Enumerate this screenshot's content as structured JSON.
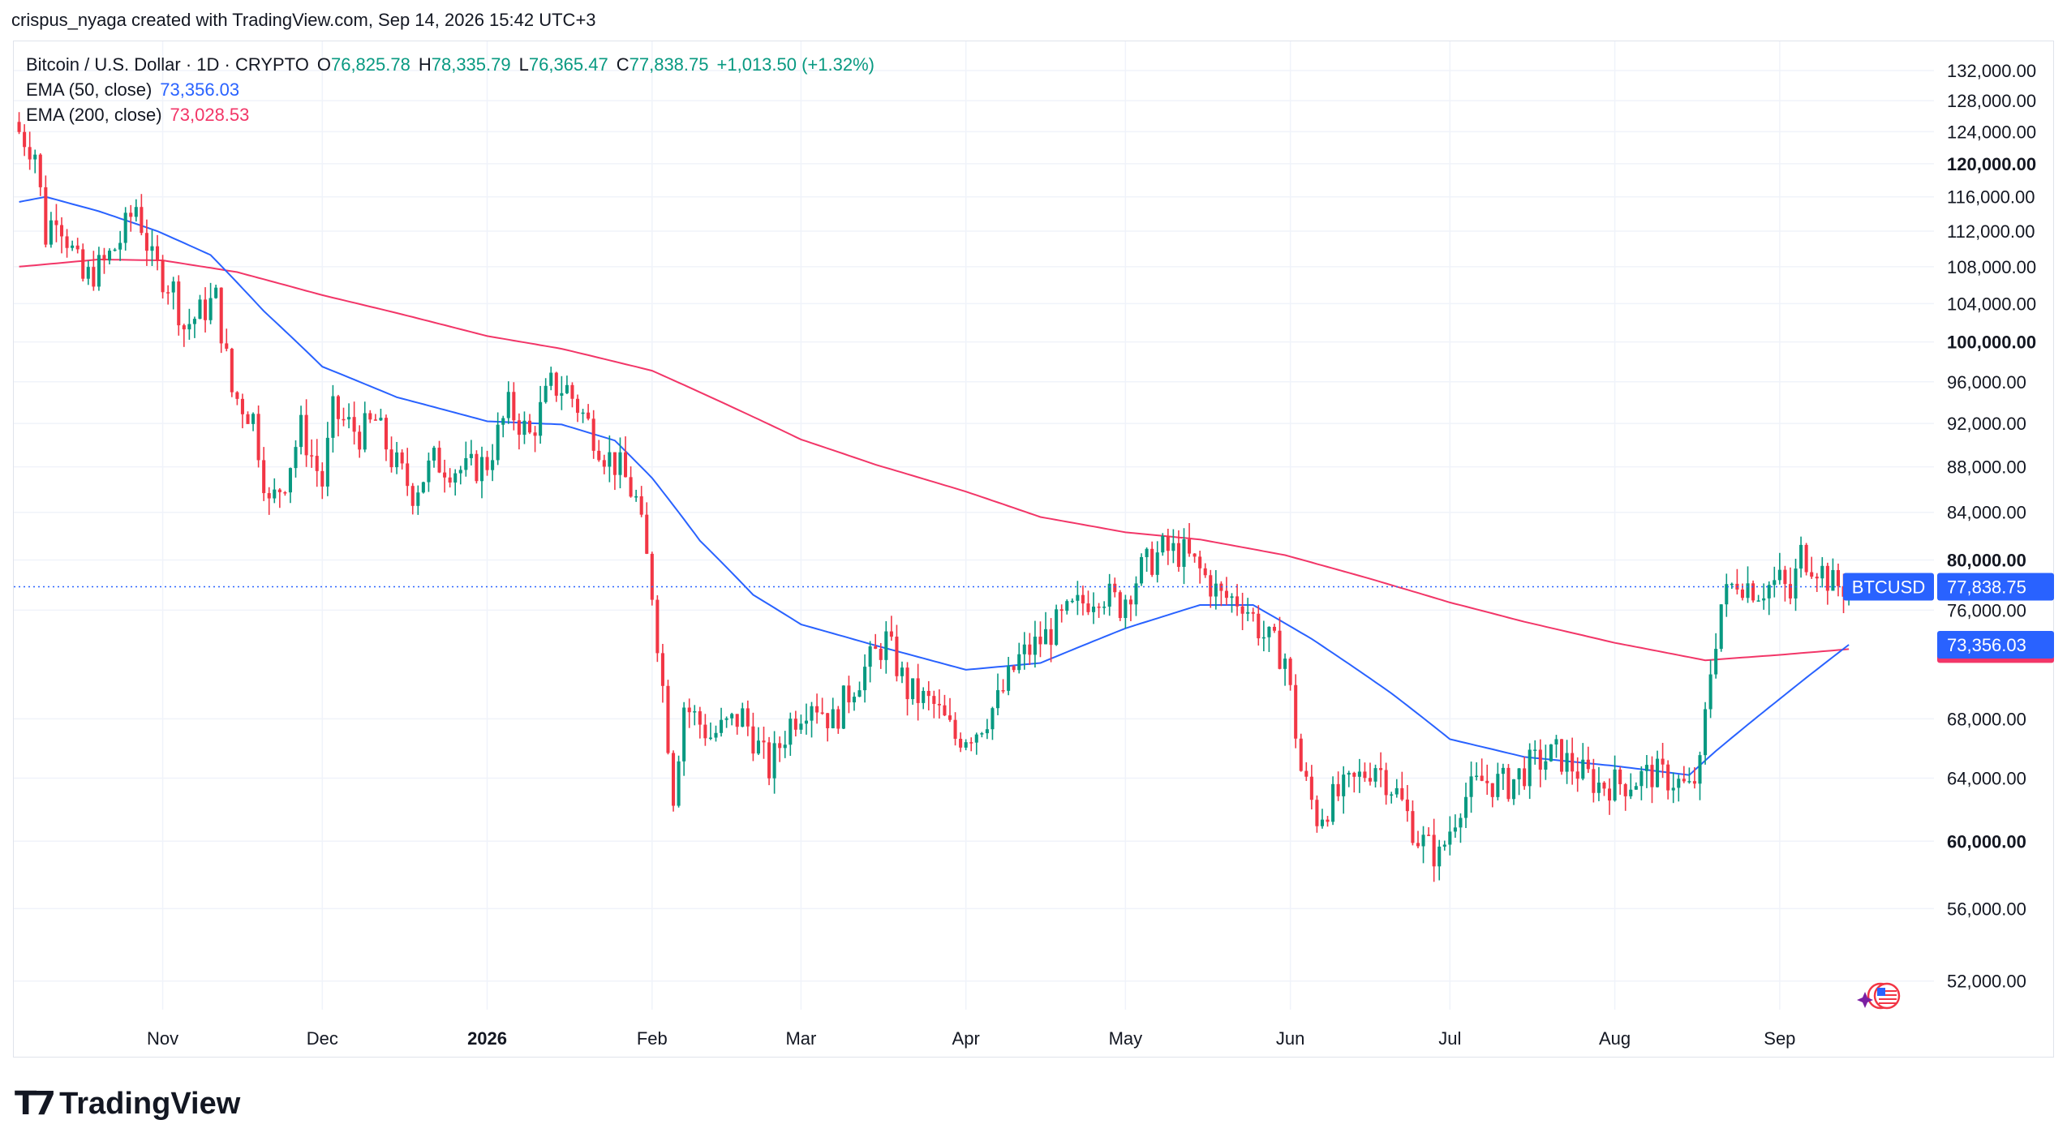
{
  "attribution": "crispus_nyaga created with TradingView.com, Sep 14, 2026 15:42 UTC+3",
  "legend": {
    "symbol": "Bitcoin / U.S. Dollar · 1D · CRYPTO",
    "o_label": "O",
    "o": "76,825.78",
    "h_label": "H",
    "h": "78,335.79",
    "l_label": "L",
    "l": "76,365.47",
    "c_label": "C",
    "c": "77,838.75",
    "change": "+1,013.50 (+1.32%)",
    "ema50_label": "EMA (50, close)",
    "ema50": "73,356.03",
    "ema200_label": "EMA (200, close)",
    "ema200": "73,028.53"
  },
  "brand": "TradingView",
  "colors": {
    "up": "#089981",
    "down": "#f23645",
    "ema50": "#2962ff",
    "ema200": "#f23668",
    "grid": "#f0f3fa",
    "text": "#131722"
  },
  "chart_data": {
    "type": "candlestick",
    "symbol": "BTCUSD",
    "interval": "1D",
    "y_scale": "log",
    "ylim": [
      50500,
      136000
    ],
    "xlim": [
      "2025-10-04",
      "2026-09-30"
    ],
    "yticks": [
      {
        "value": 132000,
        "label": "132,000.00",
        "bold": false
      },
      {
        "value": 128000,
        "label": "128,000.00",
        "bold": false
      },
      {
        "value": 124000,
        "label": "124,000.00",
        "bold": false
      },
      {
        "value": 120000,
        "label": "120,000.00",
        "bold": true
      },
      {
        "value": 116000,
        "label": "116,000.00",
        "bold": false
      },
      {
        "value": 112000,
        "label": "112,000.00",
        "bold": false
      },
      {
        "value": 108000,
        "label": "108,000.00",
        "bold": false
      },
      {
        "value": 104000,
        "label": "104,000.00",
        "bold": false
      },
      {
        "value": 100000,
        "label": "100,000.00",
        "bold": true
      },
      {
        "value": 96000,
        "label": "96,000.00",
        "bold": false
      },
      {
        "value": 92000,
        "label": "92,000.00",
        "bold": false
      },
      {
        "value": 88000,
        "label": "88,000.00",
        "bold": false
      },
      {
        "value": 84000,
        "label": "84,000.00",
        "bold": false
      },
      {
        "value": 80000,
        "label": "80,000.00",
        "bold": true
      },
      {
        "value": 76000,
        "label": "76,000.00",
        "bold": false
      },
      {
        "value": 68000,
        "label": "68,000.00",
        "bold": false
      },
      {
        "value": 64000,
        "label": "64,000.00",
        "bold": false
      },
      {
        "value": 60000,
        "label": "60,000.00",
        "bold": true
      },
      {
        "value": 56000,
        "label": "56,000.00",
        "bold": false
      },
      {
        "value": 52000,
        "label": "52,000.00",
        "bold": false
      }
    ],
    "xticks": [
      {
        "date": "2025-11-01",
        "label": "Nov",
        "bold": false
      },
      {
        "date": "2025-12-01",
        "label": "Dec",
        "bold": false
      },
      {
        "date": "2026-01-01",
        "label": "2026",
        "bold": true
      },
      {
        "date": "2026-02-01",
        "label": "Feb",
        "bold": false
      },
      {
        "date": "2026-03-01",
        "label": "Mar",
        "bold": false
      },
      {
        "date": "2026-04-01",
        "label": "Apr",
        "bold": false
      },
      {
        "date": "2026-05-01",
        "label": "May",
        "bold": false
      },
      {
        "date": "2026-06-01",
        "label": "Jun",
        "bold": false
      },
      {
        "date": "2026-07-01",
        "label": "Jul",
        "bold": false
      },
      {
        "date": "2026-08-01",
        "label": "Aug",
        "bold": false
      },
      {
        "date": "2026-09-01",
        "label": "Sep",
        "bold": false
      }
    ],
    "last_price": {
      "value": 77838.75,
      "label": "77,838.75",
      "symbol": "BTCUSD"
    },
    "ema50_last": {
      "value": 73356.03,
      "label": "73,356.03"
    },
    "ema200_last": {
      "value": 73028.53,
      "label": "73,028.53"
    },
    "start_date": "2025-10-05",
    "close_anchors": [
      [
        "2025-10-05",
        124000
      ],
      [
        "2025-10-08",
        121500
      ],
      [
        "2025-10-10",
        111500
      ],
      [
        "2025-10-12",
        114500
      ],
      [
        "2025-10-17",
        106500
      ],
      [
        "2025-10-21",
        108300
      ],
      [
        "2025-10-24",
        111000
      ],
      [
        "2025-10-27",
        115000
      ],
      [
        "2025-10-30",
        108500
      ],
      [
        "2025-11-03",
        105500
      ],
      [
        "2025-11-05",
        101500
      ],
      [
        "2025-11-08",
        103000
      ],
      [
        "2025-11-11",
        104500
      ],
      [
        "2025-11-14",
        95000
      ],
      [
        "2025-11-18",
        92500
      ],
      [
        "2025-11-21",
        84500
      ],
      [
        "2025-11-24",
        87000
      ],
      [
        "2025-11-27",
        91500
      ],
      [
        "2025-12-01",
        86500
      ],
      [
        "2025-12-03",
        93000
      ],
      [
        "2025-12-08",
        91000
      ],
      [
        "2025-12-11",
        92200
      ],
      [
        "2025-12-14",
        88800
      ],
      [
        "2025-12-18",
        85800
      ],
      [
        "2025-12-22",
        88500
      ],
      [
        "2025-12-28",
        87600
      ],
      [
        "2026-01-01",
        88400
      ],
      [
        "2026-01-05",
        93500
      ],
      [
        "2026-01-09",
        90800
      ],
      [
        "2026-01-13",
        95600
      ],
      [
        "2026-01-16",
        95300
      ],
      [
        "2026-01-19",
        92800
      ],
      [
        "2026-01-23",
        89300
      ],
      [
        "2026-01-26",
        87800
      ],
      [
        "2026-01-29",
        85000
      ],
      [
        "2026-02-01",
        77500
      ],
      [
        "2026-02-05",
        63000
      ],
      [
        "2026-02-07",
        69000
      ],
      [
        "2026-02-12",
        66800
      ],
      [
        "2026-02-18",
        68200
      ],
      [
        "2026-02-23",
        64600
      ],
      [
        "2026-02-27",
        67800
      ],
      [
        "2026-03-03",
        69500
      ],
      [
        "2026-03-07",
        67800
      ],
      [
        "2026-03-11",
        70500
      ],
      [
        "2026-03-17",
        73700
      ],
      [
        "2026-03-21",
        70000
      ],
      [
        "2026-03-26",
        68900
      ],
      [
        "2026-03-30",
        66700
      ],
      [
        "2026-04-03",
        67300
      ],
      [
        "2026-04-07",
        69200
      ],
      [
        "2026-04-11",
        72300
      ],
      [
        "2026-04-16",
        74000
      ],
      [
        "2026-04-20",
        75600
      ],
      [
        "2026-04-26",
        77600
      ],
      [
        "2026-04-30",
        76400
      ],
      [
        "2026-05-04",
        79200
      ],
      [
        "2026-05-08",
        80800
      ],
      [
        "2026-05-12",
        80500
      ],
      [
        "2026-05-15",
        79100
      ],
      [
        "2026-05-19",
        77000
      ],
      [
        "2026-05-23",
        76800
      ],
      [
        "2026-05-27",
        74000
      ],
      [
        "2026-05-31",
        72400
      ],
      [
        "2026-06-03",
        64500
      ],
      [
        "2026-06-06",
        61500
      ],
      [
        "2026-06-09",
        62600
      ],
      [
        "2026-06-13",
        63700
      ],
      [
        "2026-06-17",
        65000
      ],
      [
        "2026-06-21",
        63000
      ],
      [
        "2026-06-25",
        60200
      ],
      [
        "2026-06-29",
        59000
      ],
      [
        "2026-07-03",
        62500
      ],
      [
        "2026-07-07",
        63800
      ],
      [
        "2026-07-12",
        63600
      ],
      [
        "2026-07-16",
        64800
      ],
      [
        "2026-07-21",
        65600
      ],
      [
        "2026-07-25",
        64500
      ],
      [
        "2026-07-29",
        63600
      ],
      [
        "2026-08-03",
        63700
      ],
      [
        "2026-08-08",
        64300
      ],
      [
        "2026-08-12",
        63900
      ],
      [
        "2026-08-15",
        63200
      ],
      [
        "2026-08-17",
        64600
      ],
      [
        "2026-08-19",
        71500
      ],
      [
        "2026-08-21",
        76500
      ],
      [
        "2026-08-24",
        78500
      ],
      [
        "2026-08-28",
        77600
      ],
      [
        "2026-09-01",
        78300
      ],
      [
        "2026-09-03",
        77000
      ],
      [
        "2026-09-05",
        80500
      ],
      [
        "2026-09-08",
        79600
      ],
      [
        "2026-09-11",
        78000
      ],
      [
        "2026-09-14",
        77838.75
      ]
    ],
    "ema50_anchors": [
      [
        "2025-10-05",
        115400
      ],
      [
        "2025-10-10",
        116000
      ],
      [
        "2025-10-20",
        114300
      ],
      [
        "2025-10-31",
        112000
      ],
      [
        "2025-11-10",
        109300
      ],
      [
        "2025-11-20",
        103200
      ],
      [
        "2025-12-01",
        97500
      ],
      [
        "2025-12-15",
        94500
      ],
      [
        "2026-01-01",
        92200
      ],
      [
        "2026-01-15",
        91900
      ],
      [
        "2026-01-25",
        90400
      ],
      [
        "2026-02-01",
        87000
      ],
      [
        "2026-02-10",
        81600
      ],
      [
        "2026-02-20",
        77200
      ],
      [
        "2026-03-01",
        74900
      ],
      [
        "2026-03-15",
        73300
      ],
      [
        "2026-04-01",
        71500
      ],
      [
        "2026-04-15",
        72000
      ],
      [
        "2026-05-01",
        74600
      ],
      [
        "2026-05-15",
        76400
      ],
      [
        "2026-05-25",
        76400
      ],
      [
        "2026-06-05",
        73800
      ],
      [
        "2026-06-20",
        69800
      ],
      [
        "2026-07-01",
        66600
      ],
      [
        "2026-07-15",
        65400
      ],
      [
        "2026-08-01",
        64800
      ],
      [
        "2026-08-15",
        64200
      ],
      [
        "2026-08-20",
        65800
      ],
      [
        "2026-09-01",
        69400
      ],
      [
        "2026-09-14",
        73356.03
      ]
    ],
    "ema200_anchors": [
      [
        "2025-10-05",
        108000
      ],
      [
        "2025-10-20",
        108800
      ],
      [
        "2025-11-01",
        108700
      ],
      [
        "2025-11-15",
        107400
      ],
      [
        "2025-12-01",
        104900
      ],
      [
        "2025-12-15",
        103000
      ],
      [
        "2026-01-01",
        100600
      ],
      [
        "2026-01-15",
        99300
      ],
      [
        "2026-02-01",
        97100
      ],
      [
        "2026-02-15",
        93800
      ],
      [
        "2026-03-01",
        90500
      ],
      [
        "2026-03-15",
        88200
      ],
      [
        "2026-04-01",
        85800
      ],
      [
        "2026-04-15",
        83600
      ],
      [
        "2026-05-01",
        82300
      ],
      [
        "2026-05-15",
        81700
      ],
      [
        "2026-05-31",
        80400
      ],
      [
        "2026-06-15",
        78600
      ],
      [
        "2026-07-01",
        76600
      ],
      [
        "2026-07-15",
        75100
      ],
      [
        "2026-08-01",
        73500
      ],
      [
        "2026-08-18",
        72200
      ],
      [
        "2026-09-01",
        72600
      ],
      [
        "2026-09-14",
        73028.53
      ]
    ]
  }
}
